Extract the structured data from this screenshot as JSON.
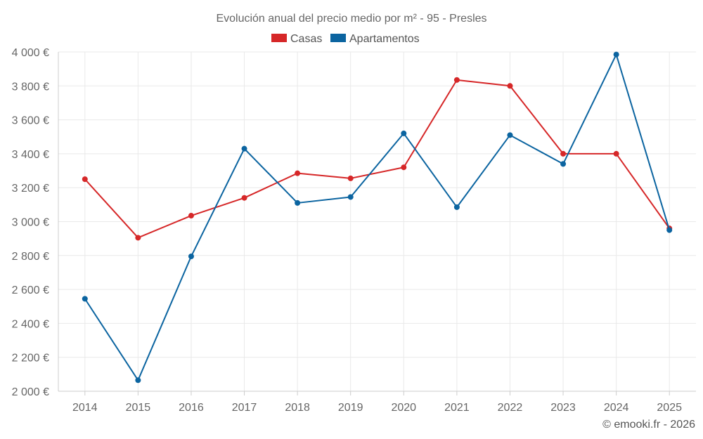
{
  "chart_data": {
    "type": "line",
    "title": "Evolución anual del precio medio por m² - 95 - Presles",
    "categories": [
      "2014",
      "2015",
      "2016",
      "2017",
      "2018",
      "2019",
      "2020",
      "2021",
      "2022",
      "2023",
      "2024",
      "2025"
    ],
    "series": [
      {
        "name": "Casas",
        "color": "#d62728",
        "values": [
          3250,
          2905,
          3035,
          3140,
          3285,
          3255,
          3320,
          3835,
          3800,
          3400,
          3400,
          2960
        ]
      },
      {
        "name": "Apartamentos",
        "color": "#0b64a0",
        "values": [
          2545,
          2065,
          2795,
          3430,
          3110,
          3145,
          3520,
          3085,
          3510,
          3340,
          3985,
          2950
        ]
      }
    ],
    "ylim": [
      2000,
      4000
    ],
    "yticks": [
      2000,
      2200,
      2400,
      2600,
      2800,
      3000,
      3200,
      3400,
      3600,
      3800,
      4000
    ],
    "ytick_labels": [
      "2 000 €",
      "2 200 €",
      "2 400 €",
      "2 600 €",
      "2 800 €",
      "3 000 €",
      "3 200 €",
      "3 400 €",
      "3 600 €",
      "3 800 €",
      "4 000 €"
    ],
    "legend_position": "top-center",
    "grid": true
  },
  "footer": "© emooki.fr - 2026"
}
